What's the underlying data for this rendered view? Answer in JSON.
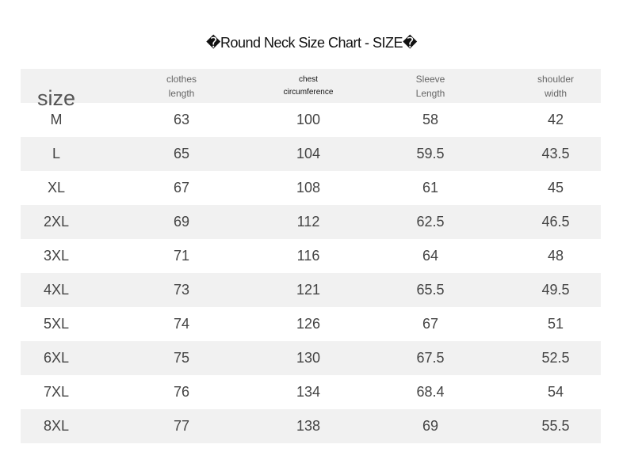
{
  "title": "�Round Neck Size Chart - SIZE�",
  "table": {
    "header": [
      "size",
      "clothes\nlength",
      "chest\ncircumference",
      "Sleeve\nLength",
      "shoulder\nwidth"
    ],
    "rows": [
      [
        "M",
        "63",
        "100",
        "58",
        "42"
      ],
      [
        "L",
        "65",
        "104",
        "59.5",
        "43.5"
      ],
      [
        "XL",
        "67",
        "108",
        "61",
        "45"
      ],
      [
        "2XL",
        "69",
        "112",
        "62.5",
        "46.5"
      ],
      [
        "3XL",
        "71",
        "116",
        "64",
        "48"
      ],
      [
        "4XL",
        "73",
        "121",
        "65.5",
        "49.5"
      ],
      [
        "5XL",
        "74",
        "126",
        "67",
        "51"
      ],
      [
        "6XL",
        "75",
        "130",
        "67.5",
        "52.5"
      ],
      [
        "7XL",
        "76",
        "134",
        "68.4",
        "54"
      ],
      [
        "8XL",
        "77",
        "138",
        "69",
        "55.5"
      ]
    ]
  }
}
